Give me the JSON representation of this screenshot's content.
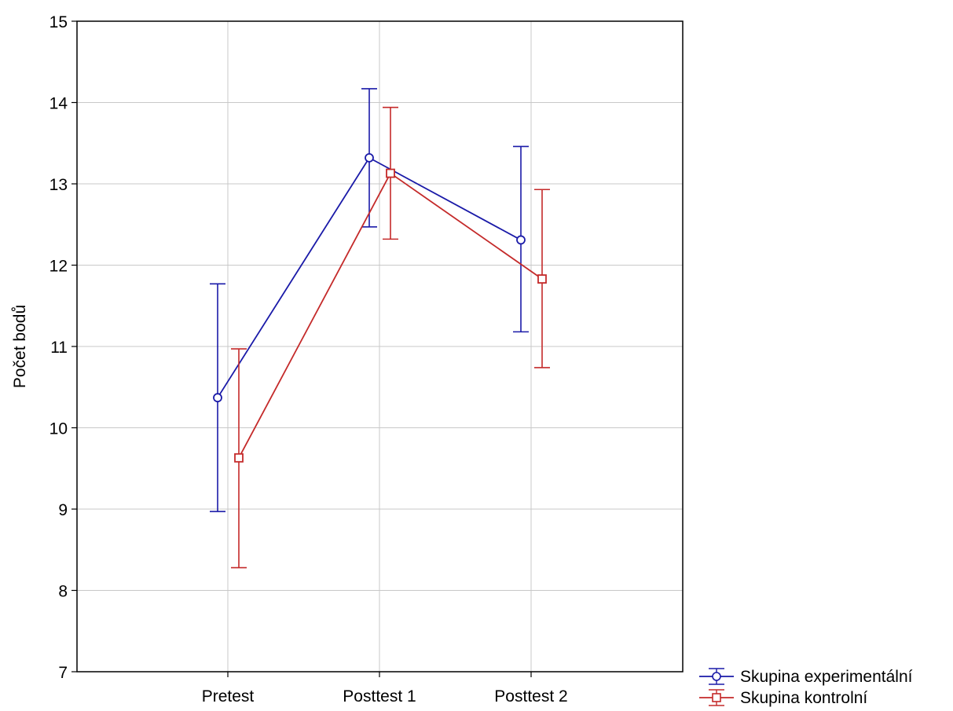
{
  "chart_data": {
    "type": "line",
    "ylabel": "Počet bodů",
    "xlabel": "",
    "categories": [
      "Pretest",
      "Posttest 1",
      "Posttest 2"
    ],
    "ylim": [
      7,
      15
    ],
    "yticks": [
      "7",
      "8",
      "9",
      "10",
      "11",
      "12",
      "13",
      "14",
      "15"
    ],
    "grid": true,
    "legend_position": "bottom-right",
    "series": [
      {
        "name": "Skupina experimentální",
        "color": "#1a1aa8",
        "marker": "circle",
        "values": [
          10.37,
          13.32,
          12.31
        ],
        "lower": [
          8.97,
          12.47,
          11.18
        ],
        "upper": [
          11.77,
          14.17,
          13.46
        ]
      },
      {
        "name": "Skupina kontrolní",
        "color": "#c42a2a",
        "marker": "square",
        "values": [
          9.63,
          13.13,
          11.83
        ],
        "lower": [
          8.28,
          12.32,
          10.74
        ],
        "upper": [
          10.97,
          13.94,
          12.93
        ]
      }
    ]
  }
}
